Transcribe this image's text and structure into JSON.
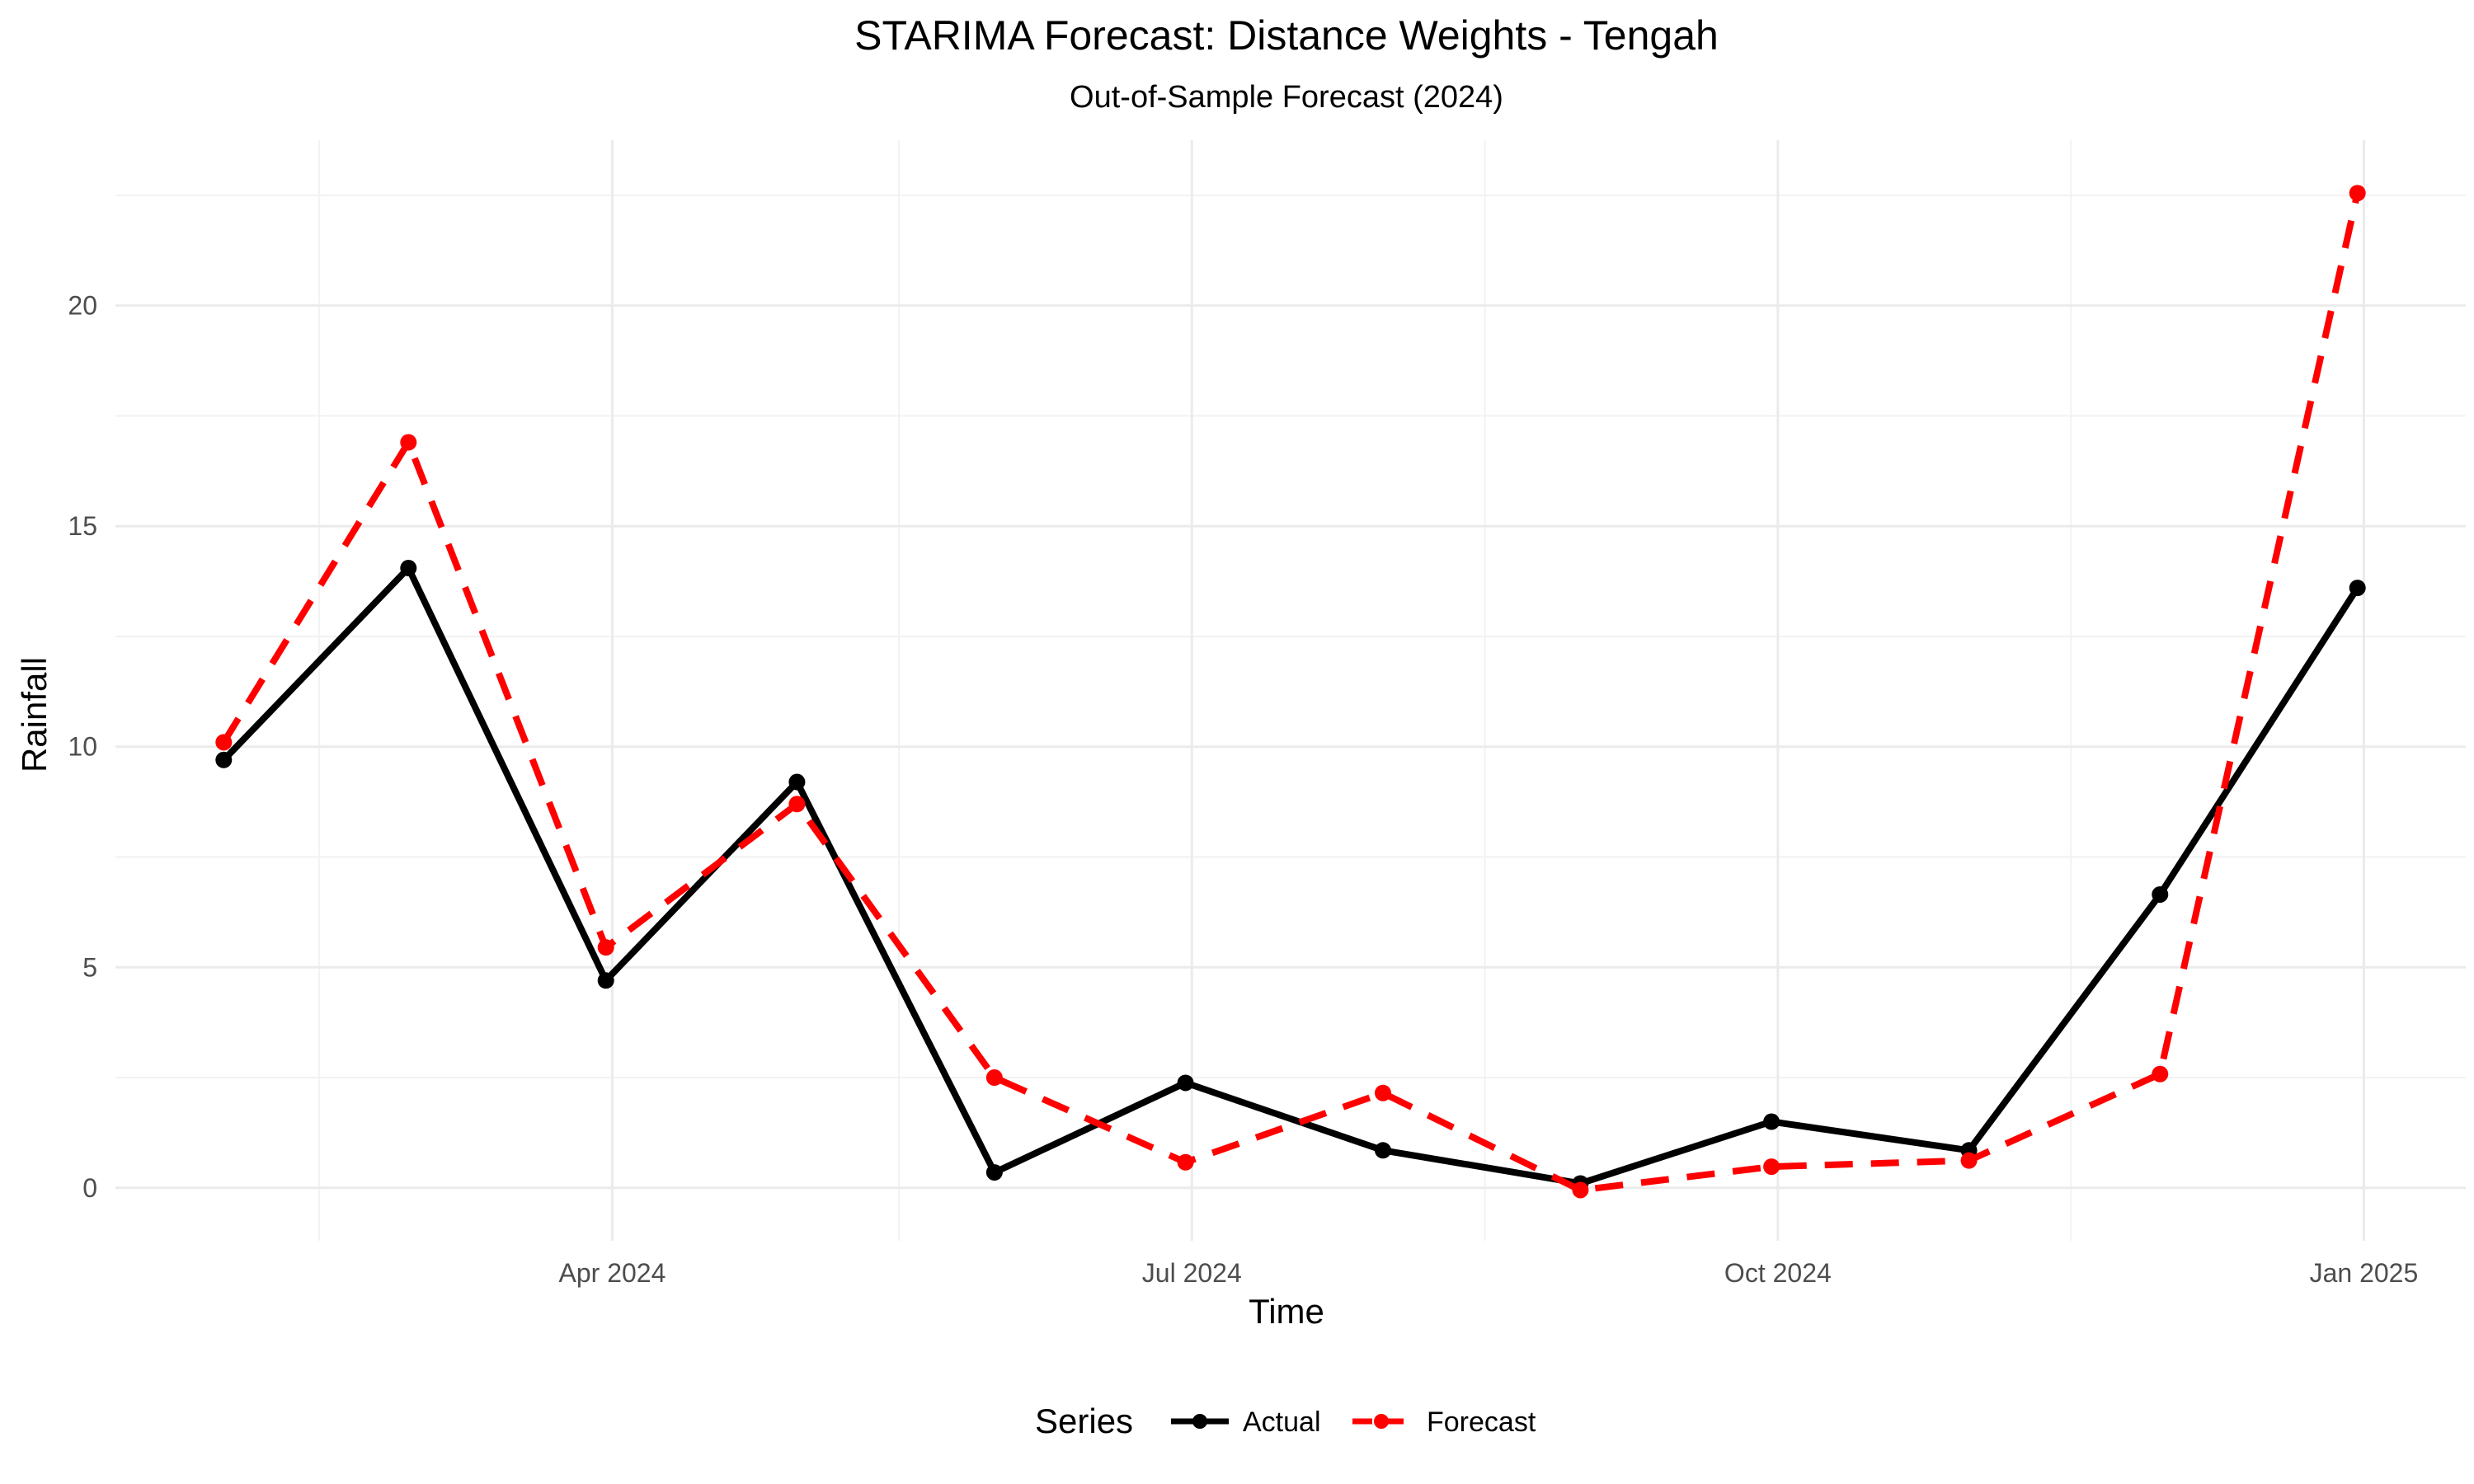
{
  "chart_data": {
    "type": "line",
    "title": "STARIMA Forecast: Distance Weights - Tengah",
    "subtitle": "Out-of-Sample Forecast (2024)",
    "xlabel": "Time",
    "ylabel": "Rainfall",
    "x": [
      "2024-01-31",
      "2024-02-29",
      "2024-03-31",
      "2024-04-30",
      "2024-05-31",
      "2024-06-30",
      "2024-07-31",
      "2024-08-31",
      "2024-09-30",
      "2024-10-31",
      "2024-11-30",
      "2024-12-31"
    ],
    "series": [
      {
        "name": "Actual",
        "color": "#000000",
        "dash": "solid",
        "values": [
          9.7,
          14.05,
          4.7,
          9.2,
          0.35,
          2.38,
          0.85,
          0.1,
          1.5,
          0.85,
          6.65,
          13.6
        ]
      },
      {
        "name": "Forecast",
        "color": "#ff0000",
        "dash": "dashed",
        "values": [
          10.1,
          16.9,
          5.45,
          8.7,
          2.5,
          0.58,
          2.15,
          -0.05,
          0.48,
          0.62,
          2.58,
          22.55
        ]
      }
    ],
    "x_ticks": [
      {
        "date": "2024-04-01",
        "label": "Apr 2024"
      },
      {
        "date": "2024-07-01",
        "label": "Jul 2024"
      },
      {
        "date": "2024-10-01",
        "label": "Oct 2024"
      },
      {
        "date": "2025-01-01",
        "label": "Jan 2025"
      }
    ],
    "x_minor": [
      "2024-02-15",
      "2024-05-16",
      "2024-08-16",
      "2024-11-16"
    ],
    "xlim": [
      "2024-01-14",
      "2025-01-17"
    ],
    "y_ticks": [
      0,
      5,
      10,
      15,
      20
    ],
    "ylim": [
      -1.2,
      23.75
    ],
    "grid": true,
    "legend_title": "Series",
    "legend_position": "bottom"
  }
}
